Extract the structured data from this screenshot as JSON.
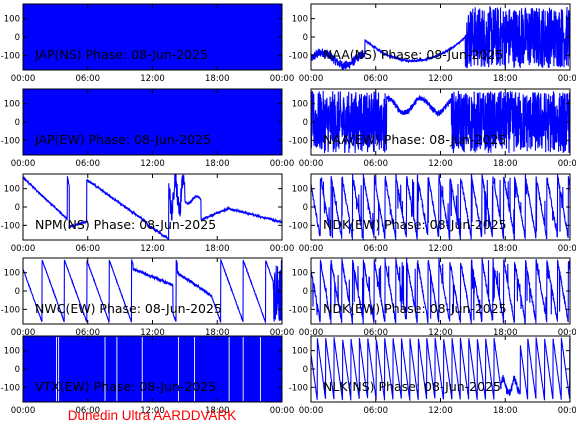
{
  "chart_data": [
    {
      "type": "line",
      "title": "JAP(NS) Phase: 08-Jun-2025",
      "series": [
        {
          "color": "#0000ff",
          "pattern": "solid"
        }
      ],
      "yticks": [
        100,
        0,
        -100
      ],
      "ylim": [
        -180,
        180
      ],
      "xticks": [
        "00:00",
        "06:00",
        "12:00",
        "18:00",
        "00:00"
      ],
      "xlim_hours": [
        0,
        24
      ]
    },
    {
      "type": "line",
      "title": "NAA(NS) Phase: 08-Jun-2025",
      "series": [
        {
          "color": "#0000ff",
          "pattern": "naa_ns"
        }
      ],
      "yticks": [
        100,
        0,
        -100
      ],
      "ylim": [
        -180,
        180
      ],
      "xticks": [
        "00:00",
        "06:00",
        "12:00",
        "18:00",
        "00:00"
      ],
      "xlim_hours": [
        0,
        24
      ]
    },
    {
      "type": "line",
      "title": "JAP(EW) Phase: 08-Jun-2025",
      "series": [
        {
          "color": "#0000ff",
          "pattern": "solid"
        }
      ],
      "yticks": [
        100,
        0,
        -100
      ],
      "ylim": [
        -180,
        180
      ],
      "xticks": [
        "00:00",
        "06:00",
        "12:00",
        "18:00",
        "00:00"
      ],
      "xlim_hours": [
        0,
        24
      ]
    },
    {
      "type": "line",
      "title": "NAA(EW) Phase: 08-Jun-2025",
      "series": [
        {
          "color": "#0000ff",
          "pattern": "naa_ew"
        }
      ],
      "yticks": [
        100,
        0,
        -100
      ],
      "ylim": [
        -180,
        180
      ],
      "xticks": [
        "00:00",
        "06:00",
        "12:00",
        "18:00",
        "00:00"
      ],
      "xlim_hours": [
        0,
        24
      ]
    },
    {
      "type": "line",
      "title": "NPM(NS) Phase: 08-Jun-2025",
      "series": [
        {
          "color": "#0000ff",
          "pattern": "npm"
        }
      ],
      "yticks": [
        100,
        0,
        -100
      ],
      "ylim": [
        -180,
        180
      ],
      "xticks": [
        "00:00",
        "06:00",
        "12:00",
        "18:00",
        "00:00"
      ],
      "xlim_hours": [
        0,
        24
      ]
    },
    {
      "type": "line",
      "title": "NDK(EW) Phase: 08-Jun-2025",
      "series": [
        {
          "color": "#0000ff",
          "pattern": "ndk"
        }
      ],
      "yticks": [
        100,
        0,
        -100
      ],
      "ylim": [
        -180,
        180
      ],
      "xticks": [
        "00:00",
        "06:00",
        "12:00",
        "18:00",
        "00:00"
      ],
      "xlim_hours": [
        0,
        24
      ]
    },
    {
      "type": "line",
      "title": "NWC(EW) Phase: 08-Jun-2025",
      "series": [
        {
          "color": "#0000ff",
          "pattern": "nwc"
        }
      ],
      "yticks": [
        100,
        0,
        -100
      ],
      "ylim": [
        -180,
        180
      ],
      "xticks": [
        "00:00",
        "06:00",
        "12:00",
        "18:00",
        "00:00"
      ],
      "xlim_hours": [
        0,
        24
      ]
    },
    {
      "type": "line",
      "title": "NDK(EW) Phase: 08-Jun-2025",
      "series": [
        {
          "color": "#0000ff",
          "pattern": "ndk"
        }
      ],
      "yticks": [
        100,
        0,
        -100
      ],
      "ylim": [
        -180,
        180
      ],
      "xticks": [
        "00:00",
        "06:00",
        "12:00",
        "18:00",
        "00:00"
      ],
      "xlim_hours": [
        0,
        24
      ]
    },
    {
      "type": "line",
      "title": "VTX(EW) Phase: 08-Jun-2025",
      "series": [
        {
          "color": "#0000ff",
          "pattern": "vtx"
        }
      ],
      "yticks": [
        100,
        0,
        -100
      ],
      "ylim": [
        -180,
        180
      ],
      "xticks": [
        "00:00",
        "06:00",
        "12:00",
        "18:00",
        "00:00"
      ],
      "xlim_hours": [
        0,
        24
      ]
    },
    {
      "type": "line",
      "title": "NLK(NS) Phase: 08-Jun-2025",
      "series": [
        {
          "color": "#0000ff",
          "pattern": "nlk"
        }
      ],
      "yticks": [
        100,
        0,
        -100
      ],
      "ylim": [
        -180,
        180
      ],
      "xticks": [
        "00:00",
        "06:00",
        "12:00",
        "18:00",
        "00:00"
      ],
      "xlim_hours": [
        0,
        24
      ]
    }
  ],
  "footer": {
    "text": "Dunedin Ultra AARDDVARK",
    "color": "#ff0000"
  },
  "line_color": "#0000ff"
}
